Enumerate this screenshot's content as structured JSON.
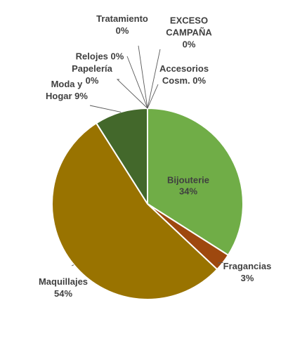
{
  "chart_data": {
    "type": "pie",
    "title": "",
    "legend": "none",
    "slices": [
      {
        "name": "Bijouterie",
        "value": 34,
        "label_lines": [
          "Bijouterie",
          "34%"
        ],
        "color": "#70ad47"
      },
      {
        "name": "Fragancias",
        "value": 3,
        "label_lines": [
          "Fragancias",
          "3%"
        ],
        "color": "#9e480e"
      },
      {
        "name": "Maquillajes",
        "value": 54,
        "label_lines": [
          "Maquillajes",
          "54%"
        ],
        "color": "#997300"
      },
      {
        "name": "Moda y Hogar",
        "value": 9,
        "label_lines": [
          "Moda y",
          "Hogar 9%"
        ],
        "color": "#43682b"
      },
      {
        "name": "Papelería",
        "value": 0,
        "label_lines": [
          "Papelería",
          "0%"
        ],
        "color": "#264478"
      },
      {
        "name": "Relojes",
        "value": 0,
        "label_lines": [
          "Relojes 0%"
        ],
        "color": "#636363"
      },
      {
        "name": "Tratamiento",
        "value": 0,
        "label_lines": [
          "Tratamiento",
          "0%"
        ],
        "color": "#255e91"
      },
      {
        "name": "EXCESO CAMPAÑA",
        "value": 0,
        "label_lines": [
          "EXCESO",
          "CAMPAÑA",
          "0%"
        ],
        "color": "#ed7d31"
      },
      {
        "name": "Accesorios Cosm.",
        "value": 0,
        "label_lines": [
          "Accesorios",
          "Cosm. 0%"
        ],
        "color": "#a5a5a5"
      }
    ]
  }
}
